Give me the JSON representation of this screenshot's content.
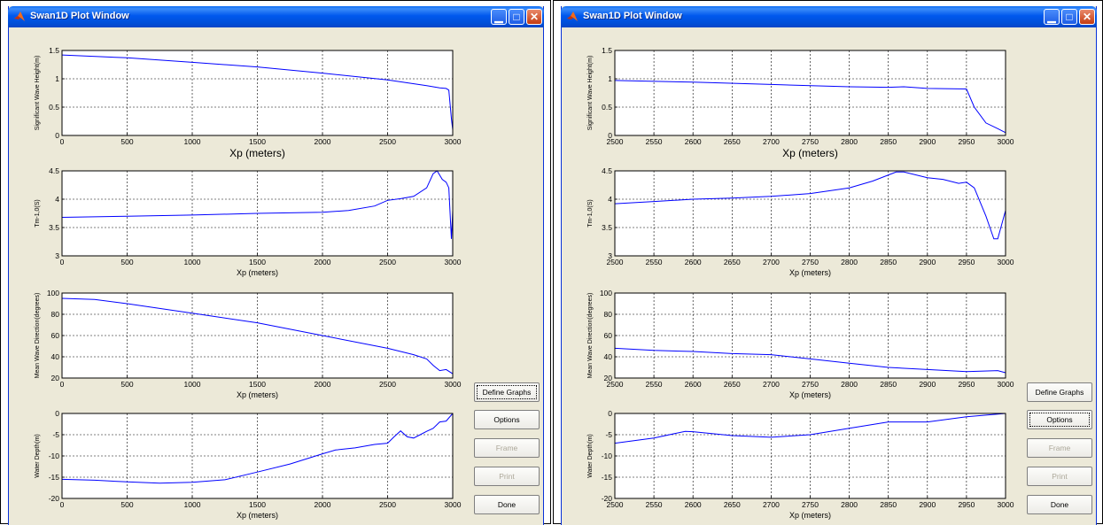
{
  "windows": [
    {
      "title": "Swan1D Plot Window",
      "buttons": [
        {
          "label": "Define Graphs",
          "enabled": true,
          "focused": true
        },
        {
          "label": "Options",
          "enabled": true,
          "focused": false
        },
        {
          "label": "Frame",
          "enabled": false,
          "focused": false
        },
        {
          "label": "Print",
          "enabled": false,
          "focused": false
        },
        {
          "label": "Done",
          "enabled": true,
          "focused": false
        }
      ],
      "chart_data": [
        {
          "type": "line",
          "xlabel": "Xp (meters)",
          "ylabel": "Significant Wave Height(m)",
          "xlim": [
            0,
            3000
          ],
          "ylim": [
            0,
            1.5
          ],
          "xticks": [
            0,
            500,
            1000,
            1500,
            2000,
            2500,
            3000
          ],
          "yticks": [
            0,
            0.5,
            1,
            1.5
          ],
          "x": [
            0,
            500,
            1000,
            1500,
            2000,
            2500,
            2800,
            2900,
            2950,
            2970,
            2990,
            3000
          ],
          "y": [
            1.42,
            1.37,
            1.29,
            1.21,
            1.1,
            0.98,
            0.88,
            0.84,
            0.83,
            0.8,
            0.3,
            0.1
          ]
        },
        {
          "type": "line",
          "xlabel": "Xp (meters)",
          "ylabel": "Tm-1,0(S)",
          "xlim": [
            0,
            3000
          ],
          "ylim": [
            3,
            4.5
          ],
          "xticks": [
            0,
            500,
            1000,
            1500,
            2000,
            2500,
            3000
          ],
          "yticks": [
            3,
            3.5,
            4,
            4.5
          ],
          "x": [
            0,
            500,
            1000,
            1500,
            2000,
            2200,
            2400,
            2500,
            2600,
            2700,
            2800,
            2850,
            2880,
            2920,
            2950,
            2970,
            2990,
            3000
          ],
          "y": [
            3.68,
            3.7,
            3.72,
            3.75,
            3.77,
            3.8,
            3.88,
            3.98,
            4.01,
            4.05,
            4.2,
            4.45,
            4.5,
            4.35,
            4.3,
            4.2,
            3.3,
            3.8
          ]
        },
        {
          "type": "line",
          "xlabel": "Xp (meters)",
          "ylabel": "Mean Wave Direction(degrees)",
          "xlim": [
            0,
            3000
          ],
          "ylim": [
            20,
            100
          ],
          "xticks": [
            0,
            500,
            1000,
            1500,
            2000,
            2500,
            3000
          ],
          "yticks": [
            20,
            40,
            60,
            80,
            100
          ],
          "x": [
            0,
            250,
            500,
            1000,
            1500,
            2000,
            2500,
            2600,
            2700,
            2800,
            2850,
            2900,
            2950,
            3000
          ],
          "y": [
            95,
            94,
            90,
            81,
            72,
            60,
            48,
            45,
            42,
            38,
            32,
            27,
            28,
            24
          ]
        },
        {
          "type": "line",
          "xlabel": "Xp (meters)",
          "ylabel": "Water Depth(m)",
          "xlim": [
            0,
            3000
          ],
          "ylim": [
            -20,
            0
          ],
          "xticks": [
            0,
            500,
            1000,
            1500,
            2000,
            2500,
            3000
          ],
          "yticks": [
            -20,
            -15,
            -10,
            -5,
            0
          ],
          "x": [
            0,
            250,
            500,
            750,
            1000,
            1250,
            1500,
            1750,
            2000,
            2100,
            2250,
            2400,
            2500,
            2550,
            2600,
            2650,
            2700,
            2750,
            2800,
            2850,
            2900,
            2950,
            3000
          ],
          "y": [
            -15.5,
            -15.7,
            -16.1,
            -16.4,
            -16.2,
            -15.6,
            -13.8,
            -11.9,
            -9.5,
            -8.6,
            -8.1,
            -7.3,
            -7.0,
            -5.5,
            -4.1,
            -5.5,
            -5.8,
            -5.0,
            -4.2,
            -3.5,
            -2.0,
            -1.8,
            0
          ]
        }
      ]
    },
    {
      "title": "Swan1D Plot Window",
      "buttons": [
        {
          "label": "Define Graphs",
          "enabled": true,
          "focused": false
        },
        {
          "label": "Options",
          "enabled": true,
          "focused": true
        },
        {
          "label": "Frame",
          "enabled": false,
          "focused": false
        },
        {
          "label": "Print",
          "enabled": false,
          "focused": false
        },
        {
          "label": "Done",
          "enabled": true,
          "focused": false
        }
      ],
      "chart_data": [
        {
          "type": "line",
          "xlabel": "Xp (meters)",
          "ylabel": "Significant Wave Height(m)",
          "xlim": [
            2500,
            3000
          ],
          "ylim": [
            0,
            1.5
          ],
          "xticks": [
            2500,
            2550,
            2600,
            2650,
            2700,
            2750,
            2800,
            2850,
            2900,
            2950,
            3000
          ],
          "yticks": [
            0,
            0.5,
            1,
            1.5
          ],
          "x": [
            2500,
            2600,
            2700,
            2800,
            2850,
            2870,
            2900,
            2950,
            2960,
            2975,
            2990,
            3000
          ],
          "y": [
            0.97,
            0.94,
            0.9,
            0.86,
            0.85,
            0.86,
            0.83,
            0.82,
            0.5,
            0.22,
            0.12,
            0.05
          ]
        },
        {
          "type": "line",
          "xlabel": "Xp (meters)",
          "ylabel": "Tm-1,0(S)",
          "xlim": [
            2500,
            3000
          ],
          "ylim": [
            3,
            4.5
          ],
          "xticks": [
            2500,
            2550,
            2600,
            2650,
            2700,
            2750,
            2800,
            2850,
            2900,
            2950,
            3000
          ],
          "yticks": [
            3,
            3.5,
            4,
            4.5
          ],
          "x": [
            2500,
            2550,
            2600,
            2650,
            2700,
            2750,
            2800,
            2830,
            2860,
            2870,
            2900,
            2920,
            2940,
            2950,
            2960,
            2975,
            2985,
            2990,
            3000
          ],
          "y": [
            3.92,
            3.96,
            4.0,
            4.02,
            4.05,
            4.1,
            4.2,
            4.32,
            4.48,
            4.48,
            4.38,
            4.35,
            4.28,
            4.3,
            4.2,
            3.7,
            3.3,
            3.3,
            3.8
          ]
        },
        {
          "type": "line",
          "xlabel": "Xp (meters)",
          "ylabel": "Mean Wave Direction(degrees)",
          "xlim": [
            2500,
            3000
          ],
          "ylim": [
            20,
            100
          ],
          "xticks": [
            2500,
            2550,
            2600,
            2650,
            2700,
            2750,
            2800,
            2850,
            2900,
            2950,
            3000
          ],
          "yticks": [
            20,
            40,
            60,
            80,
            100
          ],
          "x": [
            2500,
            2550,
            2600,
            2650,
            2700,
            2750,
            2800,
            2850,
            2900,
            2950,
            2990,
            3000
          ],
          "y": [
            48,
            46,
            45,
            43,
            42,
            38,
            34,
            30,
            28,
            26,
            27,
            25
          ]
        },
        {
          "type": "line",
          "xlabel": "Xp (meters)",
          "ylabel": "Water Depth(m)",
          "xlim": [
            2500,
            3000
          ],
          "ylim": [
            -20,
            0
          ],
          "xticks": [
            2500,
            2550,
            2600,
            2650,
            2700,
            2750,
            2800,
            2850,
            2900,
            2950,
            3000
          ],
          "yticks": [
            -20,
            -15,
            -10,
            -5,
            0
          ],
          "x": [
            2500,
            2550,
            2590,
            2600,
            2650,
            2700,
            2750,
            2800,
            2850,
            2900,
            2950,
            3000
          ],
          "y": [
            -7.0,
            -5.8,
            -4.2,
            -4.3,
            -5.2,
            -5.6,
            -5.0,
            -3.5,
            -2.0,
            -2.0,
            -0.8,
            0
          ]
        }
      ]
    }
  ]
}
